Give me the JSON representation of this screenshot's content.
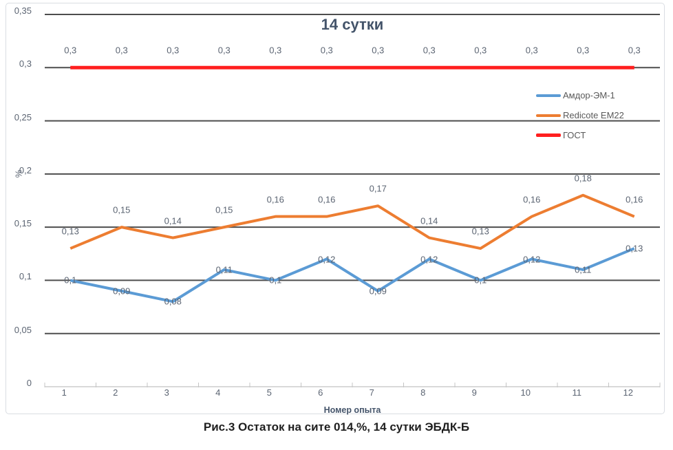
{
  "figure": {
    "caption": "Рис.3 Остаток на сите 014,%, 14 сутки ЭБДК-Б"
  },
  "chart_data": {
    "type": "line",
    "title": "14 сутки",
    "xlabel": "Номер опыта",
    "ylabel": "%",
    "x": [
      1,
      2,
      3,
      4,
      5,
      6,
      7,
      8,
      9,
      10,
      11,
      12
    ],
    "ylim": [
      0,
      0.35
    ],
    "yticks": {
      "values": [
        0,
        0.05,
        0.1,
        0.15,
        0.2,
        0.25,
        0.3,
        0.35
      ],
      "labels": [
        "0",
        "0,05",
        "0,1",
        "0,15",
        "0,2",
        "0,25",
        "0,3",
        "0,35"
      ]
    },
    "grid": "horizontal",
    "legend_position": "inside-right",
    "style": {
      "grid_color": "#4d4d4d",
      "axis_color": "#d9d9d9",
      "tick_color": "#c4c4c4",
      "text_color": "#5b6472",
      "title_color": "#44546a"
    },
    "series": [
      {
        "name": "Амдор-ЭМ-1",
        "color": "#5b9bd5",
        "width": 4,
        "label_position": "center",
        "values": [
          0.1,
          0.09,
          0.08,
          0.11,
          0.1,
          0.12,
          0.09,
          0.12,
          0.1,
          0.12,
          0.11,
          0.13
        ],
        "labels": [
          "0,1",
          "0,09",
          "0,08",
          "0,11",
          "0,1",
          "0,12",
          "0,09",
          "0,12",
          "0,1",
          "0,12",
          "0,11",
          "0,13"
        ]
      },
      {
        "name": "Redicote EM22",
        "color": "#ed7d31",
        "width": 4,
        "label_position": "above",
        "values": [
          0.13,
          0.15,
          0.14,
          0.15,
          0.16,
          0.16,
          0.17,
          0.14,
          0.13,
          0.16,
          0.18,
          0.16
        ],
        "labels": [
          "0,13",
          "0,15",
          "0,14",
          "0,15",
          "0,16",
          "0,16",
          "0,17",
          "0,14",
          "0,13",
          "0,16",
          "0,18",
          "0,16"
        ]
      },
      {
        "name": "ГОСТ",
        "color": "#ff1f1f",
        "width": 5,
        "label_position": "above",
        "values": [
          0.3,
          0.3,
          0.3,
          0.3,
          0.3,
          0.3,
          0.3,
          0.3,
          0.3,
          0.3,
          0.3,
          0.3
        ],
        "labels": [
          "0,3",
          "0,3",
          "0,3",
          "0,3",
          "0,3",
          "0,3",
          "0,3",
          "0,3",
          "0,3",
          "0,3",
          "0,3",
          "0,3"
        ]
      }
    ]
  }
}
